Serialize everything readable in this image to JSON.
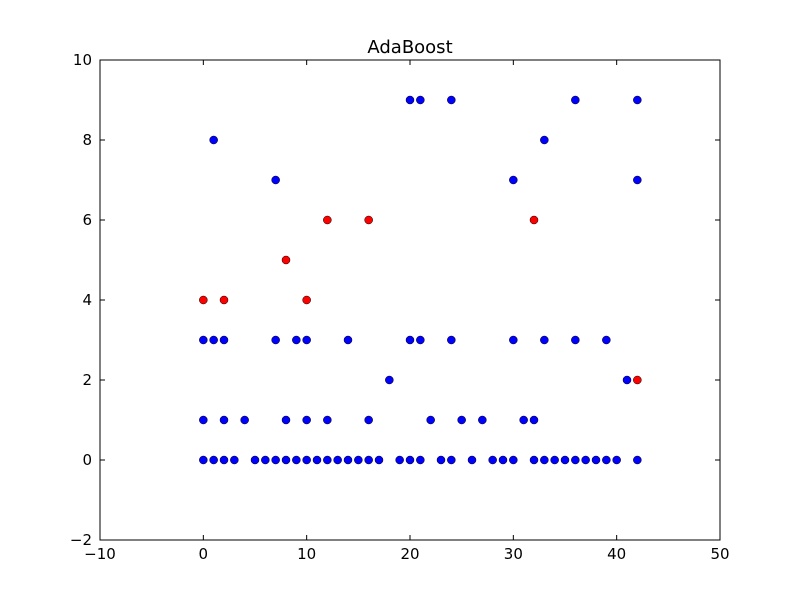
{
  "chart_data": {
    "type": "scatter",
    "title": "AdaBoost",
    "xlabel": "",
    "ylabel": "",
    "xlim": [
      -10,
      50
    ],
    "ylim": [
      -2,
      10
    ],
    "xticks": [
      -10,
      0,
      10,
      20,
      30,
      40,
      50
    ],
    "yticks": [
      -2,
      0,
      2,
      4,
      6,
      8,
      10
    ],
    "xtick_labels": [
      "−10",
      "0",
      "10",
      "20",
      "30",
      "40",
      "50"
    ],
    "ytick_labels": [
      "−2",
      "0",
      "2",
      "4",
      "6",
      "8",
      "10"
    ],
    "grid": false,
    "series": [
      {
        "color": "#0000ff",
        "points": [
          [
            0,
            0
          ],
          [
            1,
            0
          ],
          [
            2,
            0
          ],
          [
            3,
            0
          ],
          [
            5,
            0
          ],
          [
            6,
            0
          ],
          [
            7,
            0
          ],
          [
            8,
            0
          ],
          [
            9,
            0
          ],
          [
            10,
            0
          ],
          [
            11,
            0
          ],
          [
            12,
            0
          ],
          [
            13,
            0
          ],
          [
            14,
            0
          ],
          [
            15,
            0
          ],
          [
            16,
            0
          ],
          [
            17,
            0
          ],
          [
            19,
            0
          ],
          [
            20,
            0
          ],
          [
            21,
            0
          ],
          [
            23,
            0
          ],
          [
            24,
            0
          ],
          [
            26,
            0
          ],
          [
            28,
            0
          ],
          [
            29,
            0
          ],
          [
            30,
            0
          ],
          [
            32,
            0
          ],
          [
            33,
            0
          ],
          [
            34,
            0
          ],
          [
            35,
            0
          ],
          [
            36,
            0
          ],
          [
            37,
            0
          ],
          [
            38,
            0
          ],
          [
            39,
            0
          ],
          [
            40,
            0
          ],
          [
            42,
            0
          ],
          [
            0,
            1
          ],
          [
            2,
            1
          ],
          [
            4,
            1
          ],
          [
            8,
            1
          ],
          [
            10,
            1
          ],
          [
            12,
            1
          ],
          [
            16,
            1
          ],
          [
            22,
            1
          ],
          [
            25,
            1
          ],
          [
            27,
            1
          ],
          [
            31,
            1
          ],
          [
            32,
            1
          ],
          [
            18,
            2
          ],
          [
            41,
            2
          ],
          [
            0,
            3
          ],
          [
            1,
            3
          ],
          [
            2,
            3
          ],
          [
            7,
            3
          ],
          [
            9,
            3
          ],
          [
            10,
            3
          ],
          [
            14,
            3
          ],
          [
            20,
            3
          ],
          [
            21,
            3
          ],
          [
            24,
            3
          ],
          [
            30,
            3
          ],
          [
            33,
            3
          ],
          [
            36,
            3
          ],
          [
            39,
            3
          ],
          [
            30,
            7
          ],
          [
            42,
            7
          ],
          [
            7,
            7
          ],
          [
            1,
            8
          ],
          [
            33,
            8
          ],
          [
            20,
            9
          ],
          [
            21,
            9
          ],
          [
            24,
            9
          ],
          [
            36,
            9
          ],
          [
            42,
            9
          ]
        ]
      },
      {
        "color": "#ff0000",
        "points": [
          [
            0,
            4
          ],
          [
            2,
            4
          ],
          [
            10,
            4
          ],
          [
            8,
            5
          ],
          [
            12,
            6
          ],
          [
            16,
            6
          ],
          [
            32,
            6
          ],
          [
            42,
            2
          ]
        ]
      }
    ]
  }
}
